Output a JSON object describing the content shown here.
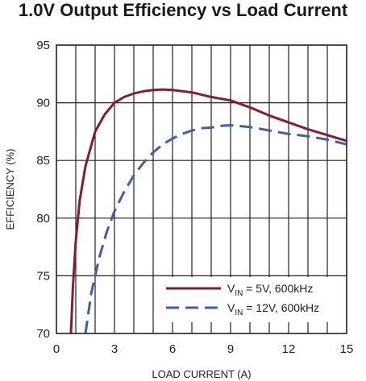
{
  "chart_data": {
    "type": "line",
    "title": "1.0V Output Efficiency vs Load Current",
    "xlabel": "LOAD CURRENT (A)",
    "ylabel": "EFFICIENCY (%)",
    "xlim": [
      0,
      15
    ],
    "ylim": [
      70,
      95
    ],
    "xticks": [
      0,
      3,
      6,
      9,
      12,
      15
    ],
    "yticks": [
      70,
      75,
      80,
      85,
      90,
      95
    ],
    "grid": true,
    "legend_position": "bottom-right",
    "series": [
      {
        "name_prefix": "V",
        "name_sub": "IN",
        "name_suffix": " = 5V, 600kHz",
        "color": "#8b1a2b",
        "dash": "solid",
        "x": [
          0.75,
          0.85,
          1.0,
          1.2,
          1.5,
          2.0,
          2.5,
          3.0,
          3.5,
          4.0,
          4.5,
          5.0,
          5.5,
          6.0,
          7.0,
          8.0,
          9.0,
          10.0,
          11.0,
          12.0,
          13.0,
          14.0,
          15.0
        ],
        "y": [
          70.0,
          74.0,
          78.0,
          81.5,
          84.5,
          87.5,
          89.0,
          90.0,
          90.5,
          90.8,
          91.0,
          91.1,
          91.15,
          91.1,
          90.9,
          90.5,
          90.2,
          89.6,
          88.9,
          88.3,
          87.7,
          87.2,
          86.7
        ]
      },
      {
        "name_prefix": "V",
        "name_sub": "IN",
        "name_suffix": " = 12V, 600kHz",
        "color": "#3a5fad",
        "dash": "dashed",
        "x": [
          1.5,
          1.8,
          2.2,
          2.6,
          3.0,
          3.5,
          4.0,
          4.5,
          5.0,
          5.5,
          6.0,
          6.5,
          7.0,
          7.5,
          8.0,
          8.5,
          9.0,
          10.0,
          11.0,
          12.0,
          13.0,
          14.0,
          15.0
        ],
        "y": [
          70.0,
          73.5,
          76.5,
          78.8,
          80.6,
          82.3,
          83.7,
          84.8,
          85.7,
          86.4,
          86.9,
          87.3,
          87.6,
          87.8,
          87.85,
          88.0,
          88.05,
          87.9,
          87.6,
          87.3,
          87.1,
          86.8,
          86.4
        ]
      }
    ]
  },
  "colors": {
    "grid": "#231f20",
    "frame": "#231f20",
    "title": "#1a1a1a"
  }
}
